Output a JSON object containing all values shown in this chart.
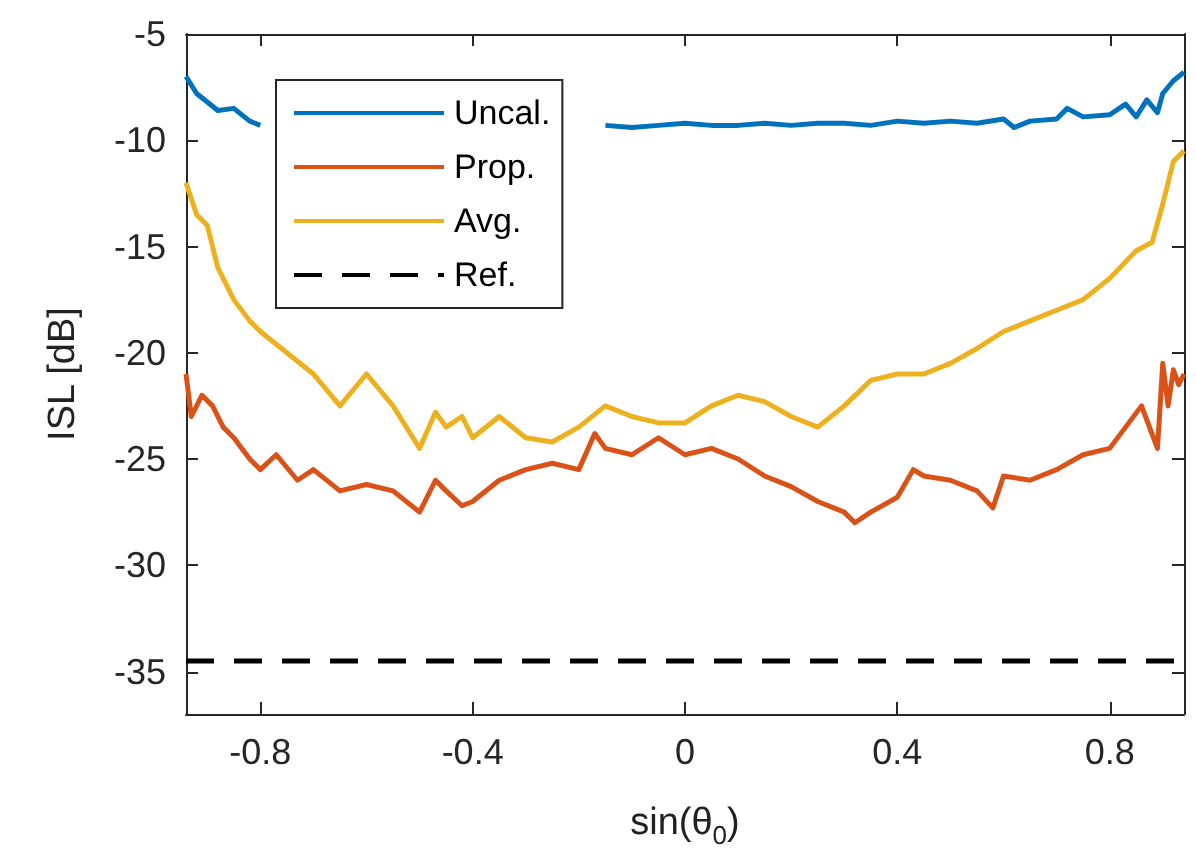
{
  "chart_data": {
    "type": "line",
    "xlabel": "sin(θ$_{0}$)",
    "ylabel": "ISL [dB]",
    "xlim": [
      -0.94,
      0.94
    ],
    "ylim": [
      -37,
      -5
    ],
    "xticks": [
      -0.8,
      -0.4,
      0,
      0.4,
      0.8
    ],
    "yticks": [
      -35,
      -30,
      -25,
      -20,
      -15,
      -10,
      -5
    ],
    "grid": false,
    "legend": "top left",
    "marker": "none",
    "series": [
      {
        "name": "Uncal.",
        "color": "#0072bd",
        "x": [
          -0.94,
          -0.92,
          -0.9,
          -0.88,
          -0.85,
          -0.82,
          -0.8,
          -0.75,
          -0.7,
          -0.65,
          -0.6,
          -0.55,
          -0.5,
          -0.45,
          -0.4,
          -0.35,
          -0.3,
          -0.25,
          -0.2,
          -0.15,
          -0.1,
          -0.05,
          0,
          0.05,
          0.1,
          0.15,
          0.2,
          0.25,
          0.3,
          0.35,
          0.4,
          0.45,
          0.5,
          0.55,
          0.6,
          0.62,
          0.65,
          0.7,
          0.72,
          0.75,
          0.8,
          0.83,
          0.85,
          0.87,
          0.89,
          0.9,
          0.92,
          0.94
        ],
        "values": [
          -7,
          -7.8,
          -8.2,
          -8.6,
          -8.5,
          -9.1,
          -9.3,
          null,
          null,
          null,
          null,
          null,
          null,
          null,
          null,
          null,
          null,
          null,
          null,
          -9.3,
          -9.4,
          -9.3,
          -9.2,
          -9.3,
          -9.3,
          -9.2,
          -9.3,
          -9.2,
          -9.2,
          -9.3,
          -9.1,
          -9.2,
          -9.1,
          -9.2,
          -9.0,
          -9.4,
          -9.1,
          -9.0,
          -8.5,
          -8.9,
          -8.8,
          -8.3,
          -8.9,
          -8.1,
          -8.7,
          -7.8,
          -7.2,
          -6.8
        ]
      },
      {
        "name": "Prop.",
        "color": "#d95319",
        "x": [
          -0.94,
          -0.93,
          -0.91,
          -0.89,
          -0.87,
          -0.85,
          -0.82,
          -0.8,
          -0.77,
          -0.73,
          -0.7,
          -0.65,
          -0.6,
          -0.55,
          -0.5,
          -0.47,
          -0.45,
          -0.42,
          -0.4,
          -0.35,
          -0.3,
          -0.25,
          -0.2,
          -0.17,
          -0.15,
          -0.1,
          -0.05,
          0,
          0.05,
          0.1,
          0.15,
          0.2,
          0.25,
          0.3,
          0.32,
          0.35,
          0.4,
          0.43,
          0.45,
          0.5,
          0.55,
          0.58,
          0.6,
          0.65,
          0.7,
          0.75,
          0.8,
          0.83,
          0.86,
          0.89,
          0.9,
          0.91,
          0.92,
          0.93,
          0.94
        ],
        "values": [
          -21,
          -23,
          -22,
          -22.5,
          -23.5,
          -24,
          -25,
          -25.5,
          -24.8,
          -26,
          -25.5,
          -26.5,
          -26.2,
          -26.5,
          -27.5,
          -26,
          -26.5,
          -27.2,
          -27,
          -26,
          -25.5,
          -25.2,
          -25.5,
          -23.8,
          -24.5,
          -24.8,
          -24,
          -24.8,
          -24.5,
          -25,
          -25.8,
          -26.3,
          -27,
          -27.5,
          -28,
          -27.5,
          -26.8,
          -25.5,
          -25.8,
          -26,
          -26.5,
          -27.3,
          -25.8,
          -26,
          -25.5,
          -24.8,
          -24.5,
          -23.5,
          -22.5,
          -24.5,
          -20.5,
          -22.5,
          -20.8,
          -21.5,
          -21
        ]
      },
      {
        "name": "Avg.",
        "color": "#edb120",
        "x": [
          -0.94,
          -0.92,
          -0.9,
          -0.88,
          -0.85,
          -0.82,
          -0.8,
          -0.75,
          -0.7,
          -0.65,
          -0.6,
          -0.55,
          -0.5,
          -0.47,
          -0.45,
          -0.42,
          -0.4,
          -0.35,
          -0.3,
          -0.25,
          -0.2,
          -0.15,
          -0.1,
          -0.05,
          0,
          0.05,
          0.1,
          0.15,
          0.2,
          0.25,
          0.3,
          0.35,
          0.4,
          0.45,
          0.5,
          0.55,
          0.6,
          0.65,
          0.7,
          0.75,
          0.8,
          0.85,
          0.88,
          0.9,
          0.92,
          0.94
        ],
        "values": [
          -12,
          -13.5,
          -14,
          -16,
          -17.5,
          -18.5,
          -19,
          -20,
          -21,
          -22.5,
          -21,
          -22.5,
          -24.5,
          -22.8,
          -23.5,
          -23,
          -24,
          -23,
          -24,
          -24.2,
          -23.5,
          -22.5,
          -23,
          -23.3,
          -23.3,
          -22.5,
          -22,
          -22.3,
          -23,
          -23.5,
          -22.5,
          -21.3,
          -21,
          -21,
          -20.5,
          -19.8,
          -19,
          -18.5,
          -18,
          -17.5,
          -16.5,
          -15.2,
          -14.8,
          -13,
          -11,
          -10.5
        ]
      },
      {
        "name": "Ref.",
        "color": "#000000",
        "line_style": "dashed",
        "x": [
          -0.94,
          0.94
        ],
        "values": [
          -34.5,
          -34.5
        ]
      }
    ]
  }
}
